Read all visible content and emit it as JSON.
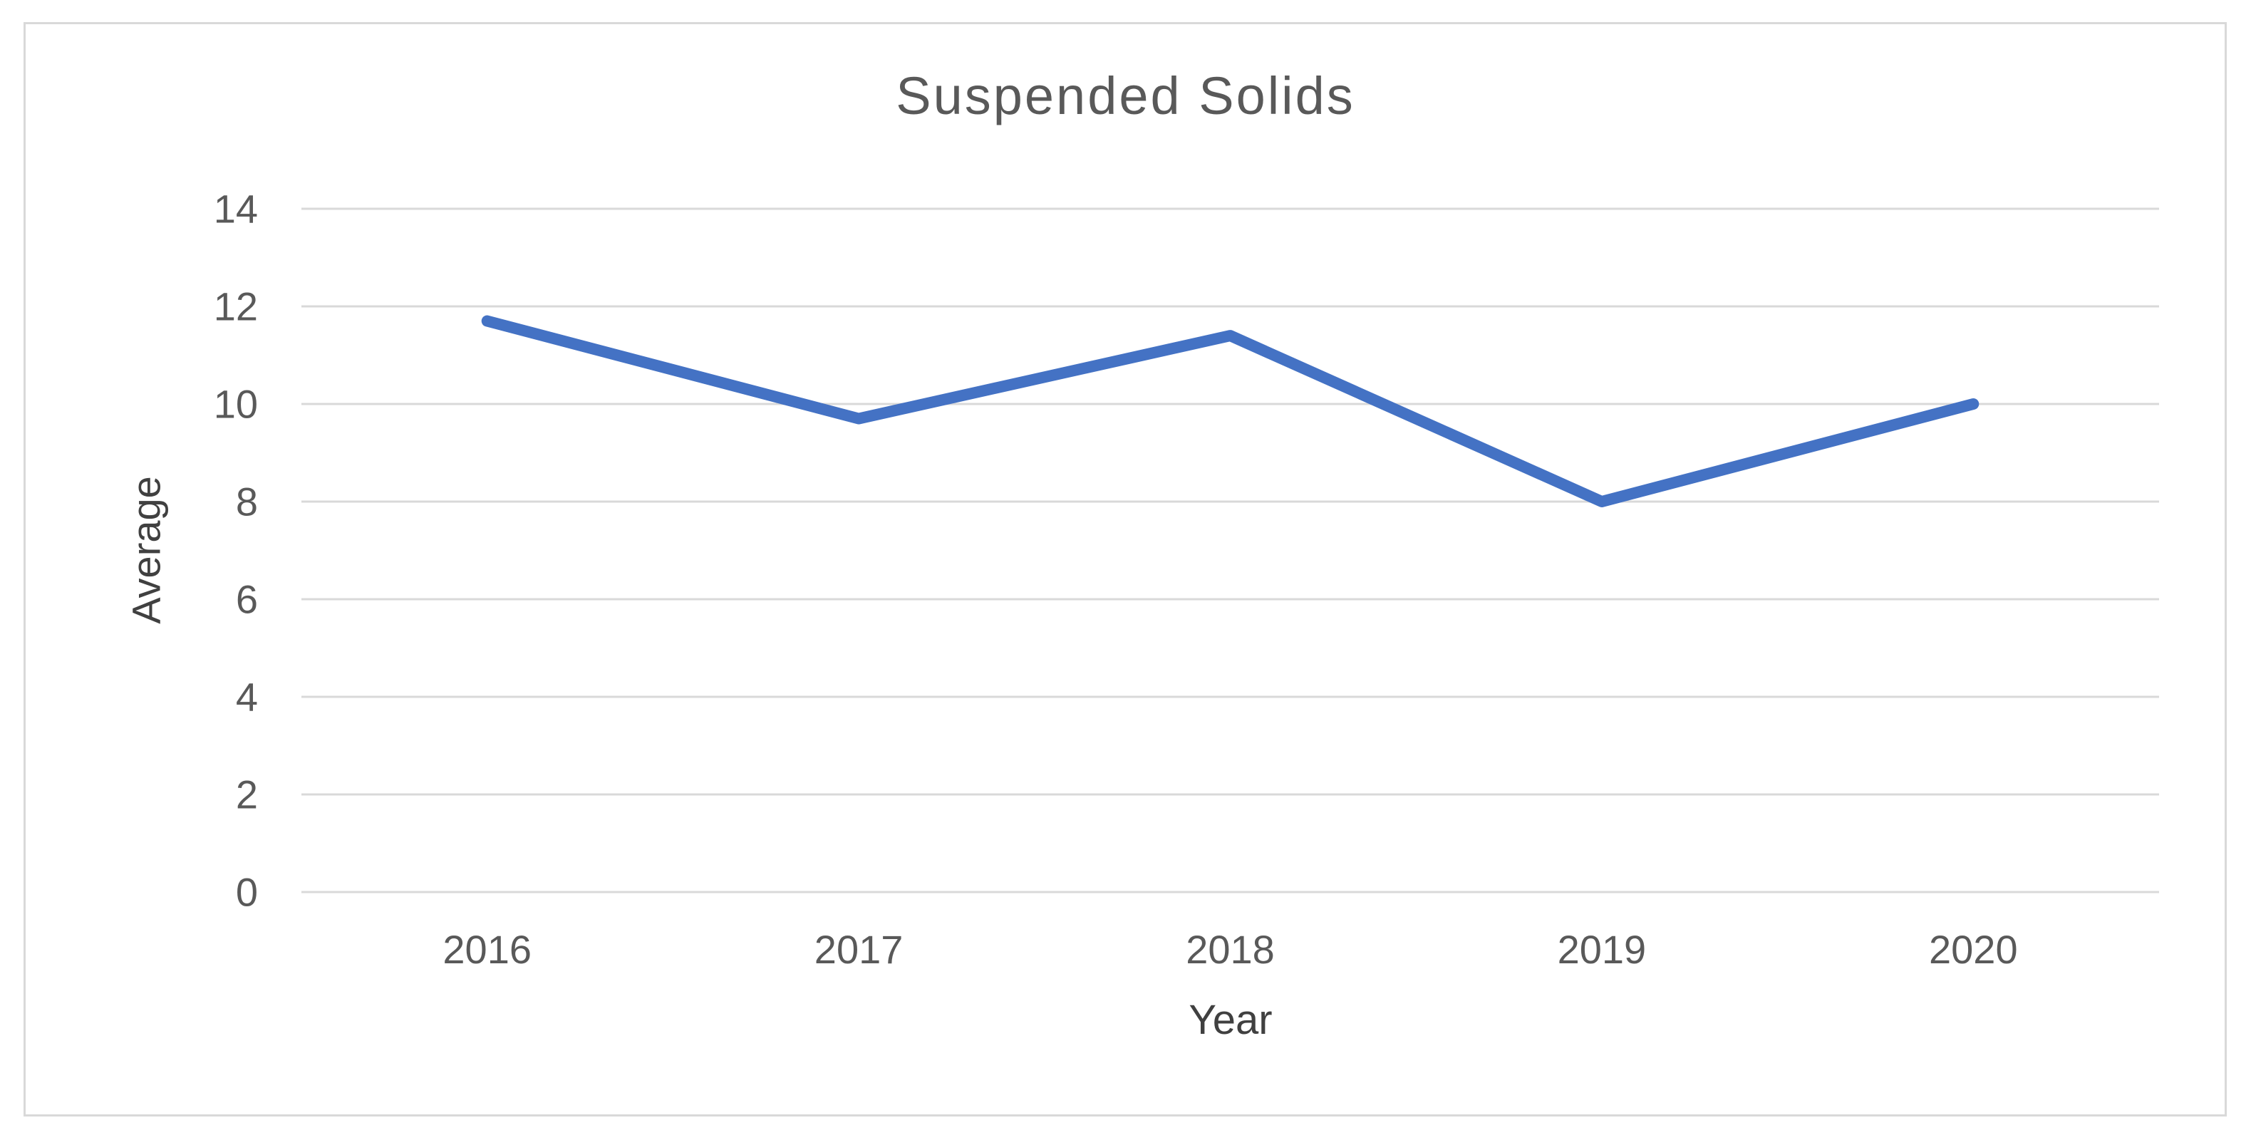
{
  "chart_data": {
    "type": "line",
    "title": "Suspended Solids",
    "xlabel": "Year",
    "ylabel": "Average",
    "categories": [
      "2016",
      "2017",
      "2018",
      "2019",
      "2020"
    ],
    "series": [
      {
        "name": "Average",
        "values": [
          11.7,
          9.7,
          11.4,
          8.0,
          10.0
        ]
      }
    ],
    "ylim": [
      0,
      14
    ],
    "ytick_step": 2,
    "grid": true,
    "legend": "none",
    "colors": {
      "line": "#4472C4",
      "gridline": "#D9D9D9",
      "frame_border": "#D9D9D9",
      "tick_text": "#595959",
      "title_text": "#595959",
      "background": "#FFFFFF"
    }
  }
}
